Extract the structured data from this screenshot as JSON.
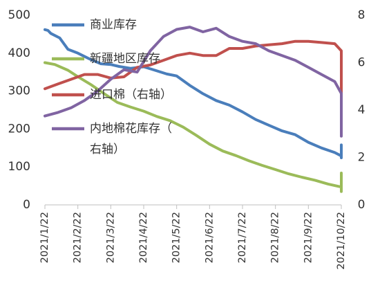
{
  "chart_data": {
    "type": "line",
    "title": "",
    "xlabel": "",
    "ylabel_left": "",
    "ylabel_right": "",
    "ylim_left": [
      0,
      500
    ],
    "ylim_right": [
      0,
      8
    ],
    "yticks_left": [
      "0",
      "100",
      "200",
      "300",
      "400",
      "500"
    ],
    "yticks_right": [
      "0",
      "2",
      "4",
      "6",
      "8"
    ],
    "xticks": [
      "2021/1/22",
      "2021/2/22",
      "2021/3/22",
      "2021/4/22",
      "2021/5/22",
      "2021/6/22",
      "2021/7/22",
      "2021/8/22",
      "2021/9/22",
      "2021/10/22"
    ],
    "grid": false,
    "legend_position": "inside-top",
    "series": [
      {
        "name": "商业库存",
        "axis": "left",
        "color": "#4a7ebb",
        "points": [
          [
            0,
            462
          ],
          [
            0.09,
            460
          ],
          [
            0.18,
            452
          ],
          [
            0.45,
            440
          ],
          [
            0.7,
            410
          ],
          [
            1,
            400
          ],
          [
            1.35,
            385
          ],
          [
            1.7,
            372
          ],
          [
            2,
            370
          ],
          [
            2.25,
            365
          ],
          [
            2.6,
            360
          ],
          [
            3,
            364
          ],
          [
            3.3,
            356
          ],
          [
            3.7,
            345
          ],
          [
            4,
            340
          ],
          [
            4.4,
            315
          ],
          [
            4.8,
            293
          ],
          [
            5.2,
            275
          ],
          [
            5.6,
            263
          ],
          [
            6,
            245
          ],
          [
            6.4,
            225
          ],
          [
            6.8,
            210
          ],
          [
            7.2,
            195
          ],
          [
            7.6,
            185
          ],
          [
            8,
            165
          ],
          [
            8.4,
            150
          ],
          [
            8.8,
            138
          ],
          [
            9.1,
            129
          ],
          [
            9.4,
            126
          ],
          [
            9.7,
            124
          ],
          [
            10,
            140
          ],
          [
            10.3,
            158
          ]
        ]
      },
      {
        "name": "新疆地区库存",
        "axis": "left",
        "color": "#9bbb59",
        "points": [
          [
            0,
            375
          ],
          [
            0.3,
            370
          ],
          [
            0.7,
            355
          ],
          [
            1,
            338
          ],
          [
            1.4,
            317
          ],
          [
            1.8,
            293
          ],
          [
            2.2,
            270
          ],
          [
            2.6,
            258
          ],
          [
            3,
            247
          ],
          [
            3.4,
            233
          ],
          [
            3.8,
            222
          ],
          [
            4.2,
            205
          ],
          [
            4.6,
            183
          ],
          [
            5,
            160
          ],
          [
            5.4,
            142
          ],
          [
            5.8,
            130
          ],
          [
            6.2,
            116
          ],
          [
            6.6,
            104
          ],
          [
            7,
            93
          ],
          [
            7.4,
            82
          ],
          [
            7.8,
            73
          ],
          [
            8.2,
            65
          ],
          [
            8.6,
            55
          ],
          [
            9,
            47
          ],
          [
            9.4,
            39
          ],
          [
            9.8,
            35
          ],
          [
            10.2,
            37
          ],
          [
            10.6,
            60
          ],
          [
            10.3,
            84
          ]
        ]
      },
      {
        "name": "进口棉（右轴）",
        "axis": "right",
        "color": "#c0504d",
        "points": [
          [
            0,
            4.9
          ],
          [
            0.4,
            5.1
          ],
          [
            0.8,
            5.3
          ],
          [
            1.2,
            5.5
          ],
          [
            1.6,
            5.5
          ],
          [
            2,
            5.35
          ],
          [
            2.4,
            5.4
          ],
          [
            2.8,
            5.8
          ],
          [
            3.2,
            5.9
          ],
          [
            3.6,
            6.1
          ],
          [
            4,
            6.3
          ],
          [
            4.4,
            6.4
          ],
          [
            4.8,
            6.3
          ],
          [
            5.2,
            6.3
          ],
          [
            5.6,
            6.6
          ],
          [
            6,
            6.6
          ],
          [
            6.4,
            6.7
          ],
          [
            6.8,
            6.75
          ],
          [
            7.2,
            6.8
          ],
          [
            7.6,
            6.9
          ],
          [
            8,
            6.9
          ],
          [
            8.4,
            6.85
          ],
          [
            8.8,
            6.8
          ],
          [
            9.2,
            6.5
          ],
          [
            9.6,
            5.6
          ],
          [
            10,
            5.8
          ],
          [
            10.3,
            4.2
          ]
        ]
      },
      {
        "name": "内地棉花库存（右轴）",
        "axis": "right",
        "color": "#8064a2",
        "points": [
          [
            0,
            3.75
          ],
          [
            0.4,
            3.9
          ],
          [
            0.8,
            4.1
          ],
          [
            1.2,
            4.4
          ],
          [
            1.6,
            4.8
          ],
          [
            2,
            5.3
          ],
          [
            2.4,
            5.7
          ],
          [
            2.8,
            5.6
          ],
          [
            3.2,
            6.5
          ],
          [
            3.6,
            7.1
          ],
          [
            4,
            7.4
          ],
          [
            4.4,
            7.5
          ],
          [
            4.8,
            7.3
          ],
          [
            5.2,
            7.45
          ],
          [
            5.6,
            7.1
          ],
          [
            6,
            6.9
          ],
          [
            6.4,
            6.8
          ],
          [
            6.8,
            6.5
          ],
          [
            7.2,
            6.3
          ],
          [
            7.6,
            6.1
          ],
          [
            8,
            5.8
          ],
          [
            8.4,
            5.5
          ],
          [
            8.8,
            5.2
          ],
          [
            9.2,
            4.7
          ],
          [
            9.6,
            4.2
          ],
          [
            10,
            3.6
          ],
          [
            10.4,
            3.0
          ],
          [
            10.8,
            2.9
          ],
          [
            11.2,
            3.3
          ]
        ]
      }
    ]
  }
}
